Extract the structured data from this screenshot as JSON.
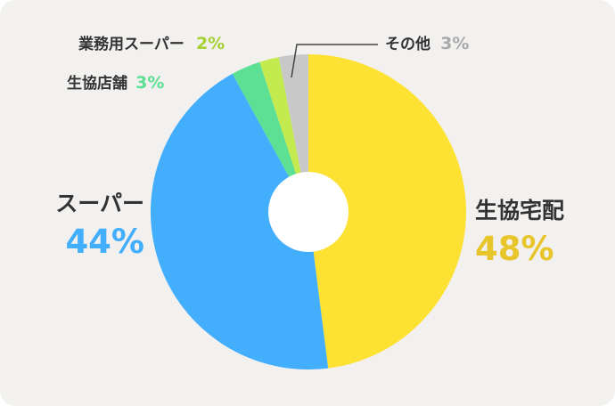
{
  "chart_data": {
    "type": "pie",
    "title": "",
    "donut": true,
    "slices": [
      {
        "label": "生協宅配",
        "value": 48,
        "pct_text": "48%",
        "color": "#fde133",
        "label_color": "#e7c52b"
      },
      {
        "label": "スーパー",
        "value": 44,
        "pct_text": "44%",
        "color": "#43aefc",
        "label_color": "#43aefc"
      },
      {
        "label": "生協店舗",
        "value": 3,
        "pct_text": "3%",
        "color": "#5ddf94",
        "label_color": "#5ddf94"
      },
      {
        "label": "業務用スーパー",
        "value": 2,
        "pct_text": "2%",
        "color": "#c3ea4e",
        "label_color": "#a5d232"
      },
      {
        "label": "その他",
        "value": 3,
        "pct_text": "3%",
        "color": "#c8c8c8",
        "label_color": "#aaaaaa"
      }
    ]
  }
}
